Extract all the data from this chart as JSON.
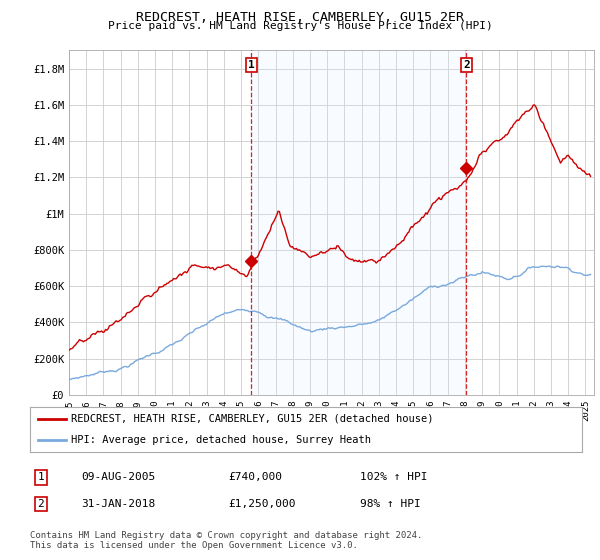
{
  "title": "REDCREST, HEATH RISE, CAMBERLEY, GU15 2ER",
  "subtitle": "Price paid vs. HM Land Registry's House Price Index (HPI)",
  "ylabel_ticks": [
    "£0",
    "£200K",
    "£400K",
    "£600K",
    "£800K",
    "£1M",
    "£1.2M",
    "£1.4M",
    "£1.6M",
    "£1.8M"
  ],
  "ytick_values": [
    0,
    200000,
    400000,
    600000,
    800000,
    1000000,
    1200000,
    1400000,
    1600000,
    1800000
  ],
  "ylim": [
    0,
    1900000
  ],
  "xlim_start": 1995.0,
  "xlim_end": 2025.5,
  "sale1_x": 2005.6,
  "sale1_y": 740000,
  "sale2_x": 2018.08,
  "sale2_y": 1250000,
  "sale1_label": "1",
  "sale2_label": "2",
  "red_color": "#cc0000",
  "blue_color": "#7aaadd",
  "shade_color": "#ddeeff",
  "dashed_color": "#cc0000",
  "legend_entry1": "REDCREST, HEATH RISE, CAMBERLEY, GU15 2ER (detached house)",
  "legend_entry2": "HPI: Average price, detached house, Surrey Heath",
  "table_row1_num": "1",
  "table_row1_date": "09-AUG-2005",
  "table_row1_price": "£740,000",
  "table_row1_hpi": "102% ↑ HPI",
  "table_row2_num": "2",
  "table_row2_date": "31-JAN-2018",
  "table_row2_price": "£1,250,000",
  "table_row2_hpi": "98% ↑ HPI",
  "footnote": "Contains HM Land Registry data © Crown copyright and database right 2024.\nThis data is licensed under the Open Government Licence v3.0.",
  "background_color": "#ffffff",
  "grid_color": "#cccccc"
}
